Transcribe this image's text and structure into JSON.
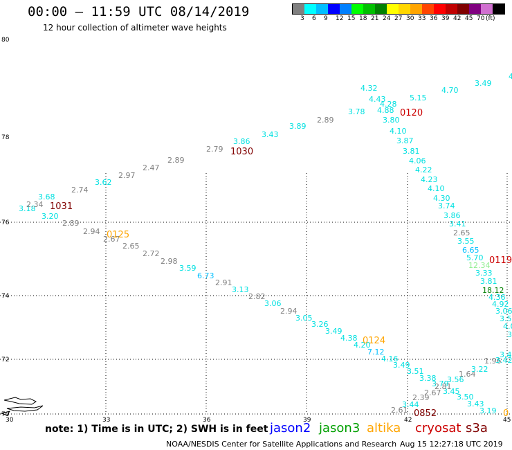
{
  "title": "00:00 – 11:59 UTC 08/14/2019",
  "subtitle": "12 hour collection of altimeter wave heights",
  "colorbar": {
    "colors": [
      "#808080",
      "#00ffff",
      "#00bfff",
      "#0000ff",
      "#0080ff",
      "#00ff00",
      "#00c000",
      "#008000",
      "#ffff00",
      "#ffd700",
      "#ffa500",
      "#ff4500",
      "#ff0000",
      "#c00000",
      "#800000",
      "#800080",
      "#d070d0",
      "#000000"
    ],
    "labels": [
      "3",
      "6",
      "9",
      "12",
      "15",
      "18",
      "21",
      "24",
      "27",
      "30",
      "33",
      "36",
      "39",
      "42",
      "45",
      "70",
      "(ft)"
    ]
  },
  "axes": {
    "lat_labels": [
      "80",
      "78",
      "76",
      "74",
      "72",
      "70"
    ],
    "lon_labels": [
      "30",
      "33",
      "36",
      "39",
      "42",
      "45"
    ]
  },
  "note": "note:  1) Time is in UTC;  2) SWH is in feet",
  "legend": [
    {
      "name": "jason2",
      "color": "#0000ff"
    },
    {
      "name": "jason3",
      "color": "#00a000"
    },
    {
      "name": "altika",
      "color": "#ffa500"
    },
    {
      "name": "cryosat",
      "color": "#cc0000"
    },
    {
      "name": "s3a",
      "color": "#800000"
    }
  ],
  "footer": "NOAA/NESDIS Center for Satellite Applications and Research",
  "footer_time": "Aug 15 12:27:18 UTC 2019",
  "tracks": [
    {
      "time": "1031",
      "time_color": "#800000",
      "values": [
        {
          "v": "3.18",
          "c": "#00e0e0"
        },
        {
          "v": "2.34",
          "c": "#808080"
        },
        {
          "v": "3.20",
          "c": "#00e0e0"
        },
        {
          "v": "3.68",
          "c": "#00e0e0"
        },
        {
          "v": "2.74",
          "c": "#808080"
        },
        {
          "v": "3.62",
          "c": "#00e0e0"
        },
        {
          "v": "2.97",
          "c": "#808080"
        },
        {
          "v": "2.47",
          "c": "#808080"
        },
        {
          "v": "2.89",
          "c": "#808080"
        },
        {
          "v": "2.79",
          "c": "#808080"
        }
      ]
    },
    {
      "time": "1030",
      "time_color": "#800000",
      "values": [
        {
          "v": "3.86",
          "c": "#00e0e0"
        },
        {
          "v": "3.43",
          "c": "#00e0e0"
        },
        {
          "v": "3.89",
          "c": "#00e0e0"
        },
        {
          "v": "2.89",
          "c": "#808080"
        },
        {
          "v": "3.78",
          "c": "#00e0e0"
        },
        {
          "v": "4.32",
          "c": "#00e0e0"
        },
        {
          "v": "4.43",
          "c": "#00e0e0"
        },
        {
          "v": "4.28",
          "c": "#00e0e0"
        },
        {
          "v": "4.88",
          "c": "#00e0e0"
        },
        {
          "v": "5.15",
          "c": "#00e0e0"
        },
        {
          "v": "4.70",
          "c": "#00e0e0"
        },
        {
          "v": "3.49",
          "c": "#00e0e0"
        },
        {
          "v": "4",
          "c": "#00e0e0"
        }
      ]
    },
    {
      "time": "0120",
      "time_color": "#cc0000",
      "values": [
        {
          "v": "3.80",
          "c": "#00e0e0"
        },
        {
          "v": "4.10",
          "c": "#00e0e0"
        },
        {
          "v": "3.87",
          "c": "#00e0e0"
        },
        {
          "v": "3.81",
          "c": "#00e0e0"
        },
        {
          "v": "4.06",
          "c": "#00e0e0"
        },
        {
          "v": "4.22",
          "c": "#00e0e0"
        },
        {
          "v": "4.23",
          "c": "#00e0e0"
        },
        {
          "v": "4.10",
          "c": "#00e0e0"
        },
        {
          "v": "4.30",
          "c": "#00e0e0"
        },
        {
          "v": "3.74",
          "c": "#00e0e0"
        },
        {
          "v": "3.86",
          "c": "#00e0e0"
        },
        {
          "v": "3.41",
          "c": "#00e0e0"
        },
        {
          "v": "2.65",
          "c": "#808080"
        },
        {
          "v": "3.55",
          "c": "#00e0e0"
        },
        {
          "v": "6.65",
          "c": "#00bfff"
        },
        {
          "v": "5.70",
          "c": "#00e0e0"
        },
        {
          "v": "12.34",
          "c": "#90ee90"
        },
        {
          "v": "3.33",
          "c": "#00e0e0"
        },
        {
          "v": "3.81",
          "c": "#00e0e0"
        },
        {
          "v": "18.12",
          "c": "#008000"
        },
        {
          "v": "4.36",
          "c": "#00e0e0"
        },
        {
          "v": "4.92",
          "c": "#00e0e0"
        },
        {
          "v": "3.06",
          "c": "#00e0e0"
        },
        {
          "v": "3.5",
          "c": "#00e0e0"
        },
        {
          "v": "4.0",
          "c": "#00e0e0"
        },
        {
          "v": "3.",
          "c": "#00e0e0"
        }
      ]
    },
    {
      "time": "0119",
      "time_color": "#cc0000",
      "values": []
    },
    {
      "time": "0125",
      "time_color": "#ffa500",
      "values": [
        {
          "v": "2.89",
          "c": "#808080"
        },
        {
          "v": "2.94",
          "c": "#808080"
        },
        {
          "v": "2.67",
          "c": "#808080"
        },
        {
          "v": "2.65",
          "c": "#808080"
        },
        {
          "v": "2.72",
          "c": "#808080"
        },
        {
          "v": "2.98",
          "c": "#808080"
        },
        {
          "v": "3.59",
          "c": "#00e0e0"
        },
        {
          "v": "6.73",
          "c": "#00bfff"
        },
        {
          "v": "2.91",
          "c": "#808080"
        },
        {
          "v": "3.13",
          "c": "#00e0e0"
        },
        {
          "v": "2.82",
          "c": "#808080"
        },
        {
          "v": "3.06",
          "c": "#00e0e0"
        },
        {
          "v": "2.94",
          "c": "#808080"
        },
        {
          "v": "3.05",
          "c": "#00e0e0"
        },
        {
          "v": "3.26",
          "c": "#00e0e0"
        },
        {
          "v": "3.49",
          "c": "#00e0e0"
        },
        {
          "v": "4.38",
          "c": "#00e0e0"
        },
        {
          "v": "4.20",
          "c": "#00e0e0"
        },
        {
          "v": "7.12",
          "c": "#00bfff"
        },
        {
          "v": "4.16",
          "c": "#00e0e0"
        },
        {
          "v": "3.49",
          "c": "#00e0e0"
        },
        {
          "v": "3.51",
          "c": "#00e0e0"
        },
        {
          "v": "3.38",
          "c": "#00e0e0"
        },
        {
          "v": "3.79",
          "c": "#00e0e0"
        },
        {
          "v": "3.56",
          "c": "#00e0e0"
        },
        {
          "v": "3.45",
          "c": "#00e0e0"
        },
        {
          "v": "3.50",
          "c": "#00e0e0"
        },
        {
          "v": "3.43",
          "c": "#00e0e0"
        },
        {
          "v": "3.19",
          "c": "#00e0e0"
        }
      ]
    },
    {
      "time": "0124",
      "time_color": "#ffa500",
      "values": []
    },
    {
      "time": "0852",
      "time_color": "#800000",
      "values": [
        {
          "v": "2.61",
          "c": "#808080"
        },
        {
          "v": "3.44",
          "c": "#00e0e0"
        },
        {
          "v": "2.39",
          "c": "#808080"
        },
        {
          "v": "2.67",
          "c": "#808080"
        },
        {
          "v": "2.81",
          "c": "#808080"
        },
        {
          "v": "1.64",
          "c": "#808080"
        },
        {
          "v": "3.22",
          "c": "#00e0e0"
        },
        {
          "v": "1.96",
          "c": "#808080"
        },
        {
          "v": "3.42",
          "c": "#00e0e0"
        },
        {
          "v": "3.4",
          "c": "#00e0e0"
        }
      ]
    },
    {
      "time": "0",
      "time_color": "#ffa500",
      "values": []
    }
  ]
}
